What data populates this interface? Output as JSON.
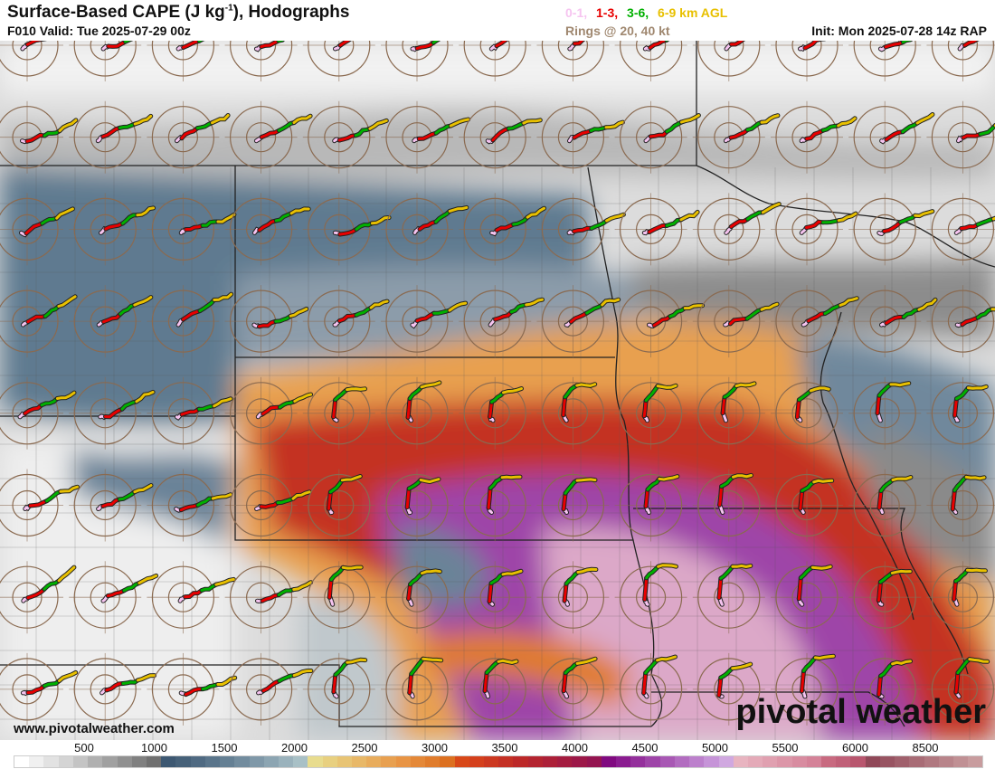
{
  "header": {
    "title_main": "Surface-Based CAPE (J kg",
    "title_sup": "-1",
    "title_end": "), Hodographs",
    "valid": "F010 Valid: Tue 2025-07-29 00z",
    "init": "Init: Mon 2025-07-28 14z RAP",
    "rings": "Rings @ 20, 40 kt",
    "legend": [
      {
        "label": "0-1,",
        "color": "#f6c4f0"
      },
      {
        "label": "1-3,",
        "color": "#e80000"
      },
      {
        "label": "3-6,",
        "color": "#00b000"
      },
      {
        "label": "6-9 km AGL",
        "color": "#e8c000"
      }
    ]
  },
  "footer": {
    "website": "www.pivotalweather.com",
    "logo": "pivotal weather"
  },
  "colorbar": {
    "labels": [
      "500",
      "1000",
      "1500",
      "2000",
      "2500",
      "3000",
      "3500",
      "4000",
      "4500",
      "5000",
      "5500",
      "6000",
      "8500"
    ],
    "colors": [
      "#ffffff",
      "#f0f0f0",
      "#e2e2e2",
      "#d4d4d4",
      "#c4c4c4",
      "#b0b0b0",
      "#a0a0a0",
      "#909090",
      "#808080",
      "#707070",
      "#3d5872",
      "#466179",
      "#4f6a82",
      "#5a758b",
      "#658094",
      "#728c9e",
      "#7f98a8",
      "#8ca5b2",
      "#9ab2bc",
      "#a8c0c6",
      "#e8dc8e",
      "#e8d080",
      "#e8c474",
      "#e8b868",
      "#e8ac5c",
      "#e8a050",
      "#e89444",
      "#e48838",
      "#e07c2c",
      "#dc7020",
      "#d84818",
      "#d4401c",
      "#cc3820",
      "#c43024",
      "#bc2828",
      "#b42430",
      "#ac2038",
      "#a41c40",
      "#9c1848",
      "#941450",
      "#800a80",
      "#8a1c90",
      "#94309c",
      "#9e44a8",
      "#a858b4",
      "#b26cc0",
      "#bc80cc",
      "#c694d8",
      "#d0a8e0",
      "#e8b4c0",
      "#e4aab8",
      "#e0a0b0",
      "#dc96a8",
      "#d88ca0",
      "#d48298",
      "#c86a80",
      "#c06078",
      "#b8566e",
      "#904858",
      "#985462",
      "#a0606c",
      "#a86c76",
      "#b07880",
      "#b8848a",
      "#c09094",
      "#c89c9e"
    ]
  },
  "map": {
    "ring_color": "#8a6a50",
    "hodograph_colors": {
      "0-1": "#f6c4f0",
      "1-3": "#e80000",
      "3-6": "#00b000",
      "6-9": "#e8c000"
    }
  }
}
